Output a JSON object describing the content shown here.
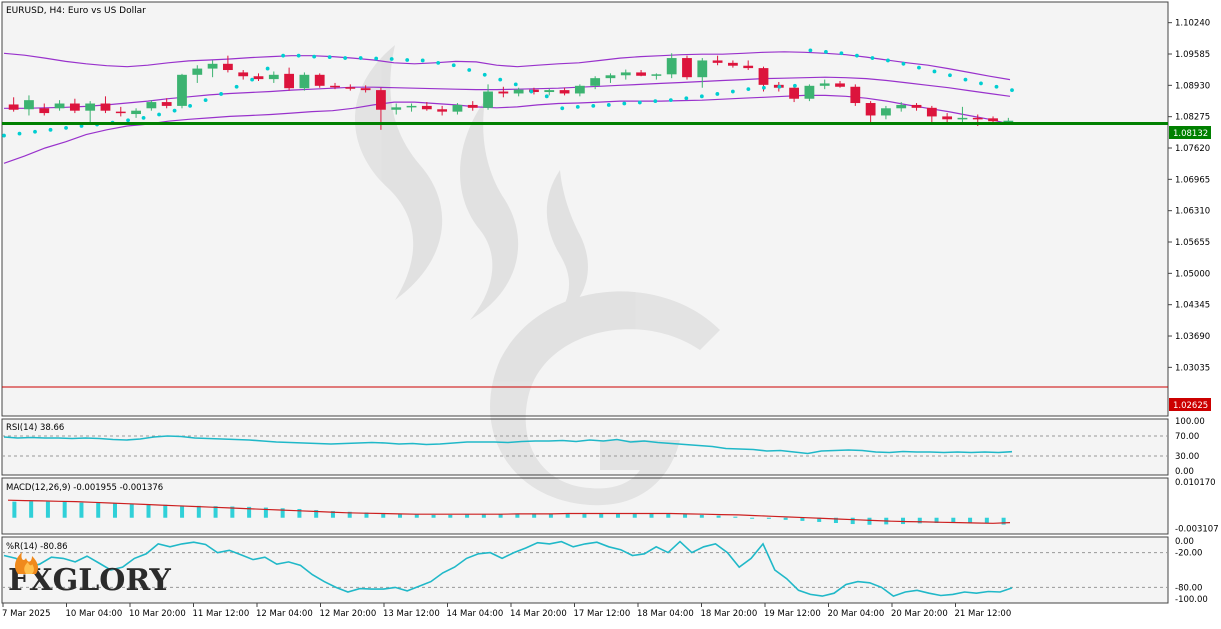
{
  "chart_title": "EURUSD, H4:  Euro vs US Dollar",
  "brand": {
    "logo_text": "FXGLORY",
    "accent": "#f08a1c"
  },
  "colors": {
    "bull": "#3cb371",
    "bear": "#dc143c",
    "bands": "#9932cc",
    "sar": "#00ced1",
    "support": "#008000",
    "lower_level": "#cc0000",
    "rsi": "#20b8c8",
    "macd_hist": "#30d0d8",
    "macd_signal": "#cc2020",
    "wpr": "#20b8c8",
    "background": "#f4f4f4"
  },
  "levels": {
    "support": {
      "value": 1.08132,
      "label": "1.08132"
    },
    "lower": {
      "value": 1.02625,
      "label": "1.02625"
    }
  },
  "chart_data": {
    "type": "candlestick",
    "title": "EURUSD, H4:  Euro vs US Dollar",
    "price_axis_ticks": [
      "1.10240",
      "1.09585",
      "1.08930",
      "1.08275",
      "1.07620",
      "1.06965",
      "1.06310",
      "1.05655",
      "1.05000",
      "1.04345",
      "1.03690",
      "1.03035"
    ],
    "price_range": [
      1.0206,
      1.1063
    ],
    "time_labels": [
      "7 Mar 2025",
      "10 Mar 04:00",
      "10 Mar 20:00",
      "11 Mar 12:00",
      "12 Mar 04:00",
      "12 Mar 20:00",
      "13 Mar 12:00",
      "14 Mar 04:00",
      "14 Mar 20:00",
      "17 Mar 12:00",
      "18 Mar 04:00",
      "18 Mar 20:00",
      "19 Mar 12:00",
      "20 Mar 04:00",
      "20 Mar 20:00",
      "21 Mar 12:00"
    ],
    "candles": [
      {
        "o": 1.0853,
        "h": 1.0868,
        "l": 1.0838,
        "c": 1.0842
      },
      {
        "o": 1.0843,
        "h": 1.0872,
        "l": 1.083,
        "c": 1.0862
      },
      {
        "o": 1.0845,
        "h": 1.0855,
        "l": 1.083,
        "c": 1.0835
      },
      {
        "o": 1.0845,
        "h": 1.0862,
        "l": 1.084,
        "c": 1.0855
      },
      {
        "o": 1.0855,
        "h": 1.0865,
        "l": 1.0835,
        "c": 1.084
      },
      {
        "o": 1.084,
        "h": 1.086,
        "l": 1.0815,
        "c": 1.0855
      },
      {
        "o": 1.0855,
        "h": 1.087,
        "l": 1.0835,
        "c": 1.084
      },
      {
        "o": 1.0838,
        "h": 1.0848,
        "l": 1.0828,
        "c": 1.0835
      },
      {
        "o": 1.0833,
        "h": 1.0845,
        "l": 1.0825,
        "c": 1.084
      },
      {
        "o": 1.0845,
        "h": 1.0862,
        "l": 1.084,
        "c": 1.0858
      },
      {
        "o": 1.0858,
        "h": 1.0866,
        "l": 1.0845,
        "c": 1.085
      },
      {
        "o": 1.085,
        "h": 1.0917,
        "l": 1.0845,
        "c": 1.0915
      },
      {
        "o": 1.0915,
        "h": 1.0935,
        "l": 1.0898,
        "c": 1.0928
      },
      {
        "o": 1.0928,
        "h": 1.0945,
        "l": 1.091,
        "c": 1.0938
      },
      {
        "o": 1.0938,
        "h": 1.0955,
        "l": 1.092,
        "c": 1.0925
      },
      {
        "o": 1.092,
        "h": 1.0925,
        "l": 1.0905,
        "c": 1.0912
      },
      {
        "o": 1.0912,
        "h": 1.0918,
        "l": 1.0902,
        "c": 1.0906
      },
      {
        "o": 1.0906,
        "h": 1.0922,
        "l": 1.0898,
        "c": 1.0915
      },
      {
        "o": 1.0917,
        "h": 1.093,
        "l": 1.0882,
        "c": 1.0887
      },
      {
        "o": 1.0887,
        "h": 1.092,
        "l": 1.0882,
        "c": 1.0915
      },
      {
        "o": 1.0915,
        "h": 1.0918,
        "l": 1.0888,
        "c": 1.0892
      },
      {
        "o": 1.0892,
        "h": 1.0898,
        "l": 1.0885,
        "c": 1.0889
      },
      {
        "o": 1.0889,
        "h": 1.0895,
        "l": 1.0882,
        "c": 1.0887
      },
      {
        "o": 1.0887,
        "h": 1.0893,
        "l": 1.0878,
        "c": 1.0883
      },
      {
        "o": 1.0883,
        "h": 1.0888,
        "l": 1.08,
        "c": 1.0842
      },
      {
        "o": 1.0842,
        "h": 1.0855,
        "l": 1.0832,
        "c": 1.0847
      },
      {
        "o": 1.0847,
        "h": 1.0855,
        "l": 1.0838,
        "c": 1.085
      },
      {
        "o": 1.085,
        "h": 1.0858,
        "l": 1.084,
        "c": 1.0843
      },
      {
        "o": 1.0843,
        "h": 1.085,
        "l": 1.083,
        "c": 1.0838
      },
      {
        "o": 1.0838,
        "h": 1.0856,
        "l": 1.0832,
        "c": 1.0852
      },
      {
        "o": 1.0852,
        "h": 1.086,
        "l": 1.084,
        "c": 1.0846
      },
      {
        "o": 1.0846,
        "h": 1.0895,
        "l": 1.0842,
        "c": 1.088
      },
      {
        "o": 1.088,
        "h": 1.089,
        "l": 1.0868,
        "c": 1.0876
      },
      {
        "o": 1.0876,
        "h": 1.0888,
        "l": 1.087,
        "c": 1.0884
      },
      {
        "o": 1.0884,
        "h": 1.0888,
        "l": 1.0874,
        "c": 1.0879
      },
      {
        "o": 1.0879,
        "h": 1.0886,
        "l": 1.0872,
        "c": 1.0883
      },
      {
        "o": 1.0883,
        "h": 1.0888,
        "l": 1.0872,
        "c": 1.0876
      },
      {
        "o": 1.0876,
        "h": 1.0895,
        "l": 1.087,
        "c": 1.0892
      },
      {
        "o": 1.0892,
        "h": 1.0912,
        "l": 1.0885,
        "c": 1.0908
      },
      {
        "o": 1.0908,
        "h": 1.0918,
        "l": 1.0898,
        "c": 1.0914
      },
      {
        "o": 1.0914,
        "h": 1.0926,
        "l": 1.0905,
        "c": 1.092
      },
      {
        "o": 1.092,
        "h": 1.0925,
        "l": 1.0912,
        "c": 1.0913
      },
      {
        "o": 1.0913,
        "h": 1.0918,
        "l": 1.0905,
        "c": 1.0916
      },
      {
        "o": 1.0916,
        "h": 1.096,
        "l": 1.0908,
        "c": 1.095
      },
      {
        "o": 1.095,
        "h": 1.0955,
        "l": 1.0905,
        "c": 1.091
      },
      {
        "o": 1.091,
        "h": 1.095,
        "l": 1.0888,
        "c": 1.0945
      },
      {
        "o": 1.0945,
        "h": 1.0955,
        "l": 1.0935,
        "c": 1.094
      },
      {
        "o": 1.094,
        "h": 1.0945,
        "l": 1.093,
        "c": 1.0934
      },
      {
        "o": 1.0934,
        "h": 1.0945,
        "l": 1.0925,
        "c": 1.0929
      },
      {
        "o": 1.0929,
        "h": 1.0932,
        "l": 1.088,
        "c": 1.0894
      },
      {
        "o": 1.0894,
        "h": 1.09,
        "l": 1.088,
        "c": 1.0888
      },
      {
        "o": 1.0888,
        "h": 1.0892,
        "l": 1.0858,
        "c": 1.0865
      },
      {
        "o": 1.0865,
        "h": 1.0895,
        "l": 1.086,
        "c": 1.0892
      },
      {
        "o": 1.0892,
        "h": 1.0905,
        "l": 1.0885,
        "c": 1.0897
      },
      {
        "o": 1.0897,
        "h": 1.0902,
        "l": 1.0888,
        "c": 1.089
      },
      {
        "o": 1.089,
        "h": 1.0895,
        "l": 1.085,
        "c": 1.0856
      },
      {
        "o": 1.0856,
        "h": 1.086,
        "l": 1.0812,
        "c": 1.083
      },
      {
        "o": 1.083,
        "h": 1.085,
        "l": 1.0822,
        "c": 1.0845
      },
      {
        "o": 1.0845,
        "h": 1.0858,
        "l": 1.0838,
        "c": 1.0852
      },
      {
        "o": 1.0852,
        "h": 1.0856,
        "l": 1.084,
        "c": 1.0846
      },
      {
        "o": 1.0846,
        "h": 1.085,
        "l": 1.0812,
        "c": 1.0828
      },
      {
        "o": 1.0828,
        "h": 1.0835,
        "l": 1.0815,
        "c": 1.0822
      },
      {
        "o": 1.0822,
        "h": 1.0848,
        "l": 1.0815,
        "c": 1.0825
      },
      {
        "o": 1.0825,
        "h": 1.0832,
        "l": 1.0808,
        "c": 1.0824
      },
      {
        "o": 1.0824,
        "h": 1.0828,
        "l": 1.0813,
        "c": 1.0818
      },
      {
        "o": 1.0818,
        "h": 1.0825,
        "l": 1.0812,
        "c": 1.0819
      }
    ],
    "bands_upper": [
      1.096,
      1.0956,
      1.095,
      1.0943,
      1.0938,
      1.0934,
      1.0932,
      1.0935,
      1.094,
      1.0944,
      1.0946,
      1.0948,
      1.0951,
      1.0953,
      1.0955,
      1.0955,
      1.0953,
      1.095,
      1.0946,
      1.094,
      1.0938,
      1.094,
      1.0943,
      1.0942,
      1.0935,
      1.0932,
      1.0935,
      1.0938,
      1.094,
      1.0945,
      1.095,
      1.0953,
      1.0955,
      1.0957,
      1.0958,
      1.0958,
      1.096,
      1.0962,
      1.0963,
      1.0962,
      1.096,
      1.0957,
      1.0952,
      1.0946,
      1.094,
      1.0935,
      1.0928,
      1.092,
      1.0912,
      1.0905
    ],
    "bands_middle": [
      1.0845,
      1.0845,
      1.0846,
      1.0847,
      1.0849,
      1.0852,
      1.0856,
      1.086,
      1.0865,
      1.0869,
      1.0873,
      1.0876,
      1.0878,
      1.088,
      1.0883,
      1.0885,
      1.0887,
      1.0889,
      1.0889,
      1.0888,
      1.0887,
      1.0886,
      1.0885,
      1.0884,
      1.0884,
      1.0885,
      1.0886,
      1.0887,
      1.0889,
      1.0891,
      1.0893,
      1.0895,
      1.0897,
      1.0899,
      1.0901,
      1.0903,
      1.0905,
      1.0907,
      1.0908,
      1.0909,
      1.091,
      1.0909,
      1.0907,
      1.0903,
      1.0898,
      1.0893,
      1.0888,
      1.0882,
      1.0876,
      1.087
    ],
    "bands_lower": [
      1.073,
      1.0745,
      1.0762,
      1.0775,
      1.079,
      1.08,
      1.0808,
      1.0812,
      1.0818,
      1.0822,
      1.0825,
      1.0828,
      1.083,
      1.0832,
      1.0835,
      1.0838,
      1.084,
      1.0845,
      1.0852,
      1.0858,
      1.0858,
      1.0855,
      1.0852,
      1.0848,
      1.0846,
      1.0848,
      1.0852,
      1.0855,
      1.0856,
      1.0858,
      1.086,
      1.086,
      1.086,
      1.0861,
      1.0862,
      1.0864,
      1.0866,
      1.0868,
      1.087,
      1.0872,
      1.0872,
      1.087,
      1.0866,
      1.086,
      1.0852,
      1.0845,
      1.0838,
      1.083,
      1.0822,
      1.0812
    ],
    "sar": [
      1.0788,
      1.0792,
      1.0796,
      1.08,
      1.0804,
      1.0808,
      1.0811,
      1.0815,
      1.082,
      1.0825,
      1.0832,
      1.084,
      1.085,
      1.0862,
      1.0875,
      1.089,
      1.0905,
      1.0928,
      1.0955,
      1.0955,
      1.0953,
      1.0952,
      1.095,
      1.095,
      1.0949,
      1.0948,
      1.0946,
      1.0945,
      1.094,
      1.0935,
      1.0925,
      1.0915,
      1.0905,
      1.0895,
      1.088,
      1.087,
      1.0845,
      1.0848,
      1.085,
      1.0852,
      1.0855,
      1.0857,
      1.086,
      1.0862,
      1.0866,
      1.087,
      1.0875,
      1.088,
      1.0885,
      1.0888,
      1.089,
      1.0892,
      1.0966,
      1.0963,
      1.096,
      1.0955,
      1.095,
      1.0945,
      1.0938,
      1.093,
      1.0922,
      1.0914,
      1.0905,
      1.0897,
      1.089,
      1.0883
    ],
    "rsi": {
      "label": "RSI(14) 38.66",
      "ticks": [
        "70.00",
        "30.00",
        "0.00",
        "100.00"
      ],
      "values": [
        68,
        66,
        67,
        66,
        66,
        65,
        66,
        65,
        63,
        62,
        64,
        68,
        70,
        69,
        66,
        65,
        64,
        63,
        62,
        60,
        58,
        57,
        56,
        55,
        54,
        55,
        56,
        57,
        56,
        54,
        55,
        53,
        54,
        56,
        58,
        58,
        58,
        57,
        59,
        60,
        60,
        61,
        59,
        62,
        60,
        63,
        58,
        60,
        57,
        55,
        53,
        51,
        49,
        45,
        44,
        43,
        40,
        41,
        38,
        35,
        40,
        41,
        42,
        41,
        38,
        37,
        39,
        38,
        38,
        37,
        38,
        37,
        38,
        37,
        38.66
      ]
    },
    "macd": {
      "label": "MACD(12,26,9) -0.001955 -0.001376",
      "ticks": [
        "0.010170",
        "-0.003107"
      ],
      "hist": [
        0.0046,
        0.0047,
        0.0046,
        0.0045,
        0.0043,
        0.0042,
        0.0041,
        0.004,
        0.0039,
        0.0037,
        0.0035,
        0.0034,
        0.0033,
        0.0032,
        0.0031,
        0.0029,
        0.0027,
        0.0025,
        0.0022,
        0.0019,
        0.0017,
        0.0015,
        0.0013,
        0.0011,
        0.0009,
        0.0008,
        0.0008,
        0.0009,
        0.0009,
        0.001,
        0.001,
        0.0011,
        0.0011,
        0.0012,
        0.0012,
        0.0012,
        0.0013,
        0.0012,
        0.0012,
        0.0011,
        0.001,
        0.0008,
        0.0006,
        0.0003,
        0.0,
        -0.0003,
        -0.0006,
        -0.0009,
        -0.0012,
        -0.0015,
        -0.0018,
        -0.002,
        -0.0019,
        -0.0018,
        -0.0016,
        -0.0015,
        -0.0014,
        -0.0015,
        -0.0016,
        -0.00196
      ],
      "signal": [
        0.005,
        0.0049,
        0.0048,
        0.0047,
        0.0046,
        0.0044,
        0.0042,
        0.004,
        0.0038,
        0.0036,
        0.0034,
        0.0032,
        0.003,
        0.0028,
        0.0026,
        0.0024,
        0.0022,
        0.002,
        0.0018,
        0.0016,
        0.0014,
        0.0013,
        0.0012,
        0.0011,
        0.001,
        0.001,
        0.001,
        0.001,
        0.001,
        0.001,
        0.0011,
        0.0011,
        0.0011,
        0.0012,
        0.0012,
        0.0012,
        0.0012,
        0.0012,
        0.0012,
        0.0012,
        0.0011,
        0.001,
        0.0009,
        0.0008,
        0.0006,
        0.0004,
        0.0002,
        0.0,
        -0.0002,
        -0.0004,
        -0.0006,
        -0.0008,
        -0.001,
        -0.0011,
        -0.0012,
        -0.0013,
        -0.0014,
        -0.0015,
        -0.0016,
        -0.00138
      ]
    },
    "wpr": {
      "label": "%R(14) -80.86",
      "ticks": [
        "0.00",
        "-20.00",
        "-80.00",
        "-100.00"
      ],
      "values": [
        -25,
        -30,
        -45,
        -40,
        -28,
        -30,
        -36,
        -26,
        -38,
        -50,
        -45,
        -30,
        -22,
        -5,
        -10,
        -5,
        -2,
        -6,
        -20,
        -16,
        -24,
        -32,
        -28,
        -40,
        -36,
        -42,
        -58,
        -70,
        -80,
        -88,
        -82,
        -83,
        -83,
        -80,
        -86,
        -78,
        -70,
        -55,
        -45,
        -30,
        -22,
        -20,
        -30,
        -20,
        -12,
        -3,
        -5,
        -1,
        -10,
        -5,
        -2,
        -10,
        -15,
        -25,
        -22,
        -10,
        -20,
        -1,
        -20,
        -10,
        -5,
        -20,
        -45,
        -30,
        -5,
        -50,
        -65,
        -85,
        -92,
        -95,
        -90,
        -75,
        -70,
        -72,
        -80,
        -95,
        -88,
        -85,
        -90,
        -94,
        -92,
        -88,
        -90,
        -87,
        -88,
        -80.86
      ]
    }
  }
}
